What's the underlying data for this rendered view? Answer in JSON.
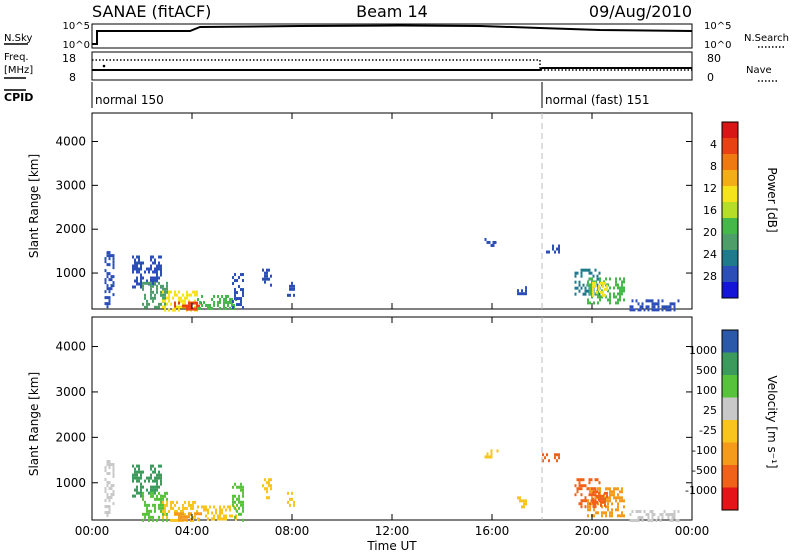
{
  "header": {
    "station": "SANAE (fitACF)",
    "beam": "Beam 14",
    "date": "09/Aug/2010"
  },
  "status_panel": {
    "nsky_label": "N.Sky",
    "nsearch_label": "N.Search",
    "freq_label_1": "Freq.",
    "freq_label_2": "[MHz]",
    "nave_label": "Nave",
    "cpid_label": "CPID",
    "nsky_ticks": [
      "10^5",
      "10^0"
    ],
    "nsearch_ticks": [
      "10^5",
      "10^0"
    ],
    "freq_ticks": [
      "18",
      "8"
    ],
    "nave_ticks": [
      "80",
      "0"
    ],
    "cpid_modes": [
      {
        "label": "normal 150",
        "start_hour": 0.0
      },
      {
        "label": "normal (fast) 151",
        "start_hour": 18.0
      }
    ]
  },
  "time_axis": {
    "label": "Time UT",
    "ticks": [
      {
        "hour": 0,
        "label": "00:00"
      },
      {
        "hour": 4,
        "label": "04:00"
      },
      {
        "hour": 8,
        "label": "08:00"
      },
      {
        "hour": 12,
        "label": "12:00"
      },
      {
        "hour": 16,
        "label": "16:00"
      },
      {
        "hour": 20,
        "label": "20:00"
      },
      {
        "hour": 24,
        "label": "00:00"
      }
    ],
    "range_hours": [
      0,
      24
    ]
  },
  "chart_data": [
    {
      "type": "heatmap",
      "title": "",
      "xlabel": "",
      "ylabel": "Slant Range [km]",
      "xlim_hours": [
        0,
        24
      ],
      "ylim_km": [
        180,
        4650
      ],
      "yticks": [
        1000,
        2000,
        3000,
        4000
      ],
      "colorbar_label": "Power [dB]",
      "colorbar_ticks": [
        "4",
        "8",
        "12",
        "16",
        "20",
        "24",
        "28"
      ],
      "colorscale": [
        "#1515d8",
        "#2c4fb7",
        "#1f7a8c",
        "#4e9e6a",
        "#46b84a",
        "#b6dd28",
        "#f5e31b",
        "#f2ad17",
        "#ef7a12",
        "#e84214",
        "#d81616"
      ],
      "mode_change_hour": 18.0,
      "echo_regions": [
        {
          "t_start": 0.5,
          "t_end": 0.9,
          "r_start": 180,
          "r_end": 1500,
          "level": 1
        },
        {
          "t_start": 1.6,
          "t_end": 2.8,
          "r_start": 700,
          "r_end": 1400,
          "level": 1
        },
        {
          "t_start": 2.0,
          "t_end": 3.0,
          "r_start": 200,
          "r_end": 800,
          "level": 3
        },
        {
          "t_start": 2.8,
          "t_end": 4.2,
          "r_start": 180,
          "r_end": 600,
          "level": 6
        },
        {
          "t_start": 3.2,
          "t_end": 4.4,
          "r_start": 180,
          "r_end": 350,
          "level": 9
        },
        {
          "t_start": 4.2,
          "t_end": 5.8,
          "r_start": 180,
          "r_end": 500,
          "level": 4
        },
        {
          "t_start": 5.6,
          "t_end": 6.0,
          "r_start": 180,
          "r_end": 1000,
          "level": 1
        },
        {
          "t_start": 6.8,
          "t_end": 7.2,
          "r_start": 700,
          "r_end": 1100,
          "level": 1
        },
        {
          "t_start": 7.8,
          "t_end": 8.1,
          "r_start": 500,
          "r_end": 800,
          "level": 1
        },
        {
          "t_start": 15.7,
          "t_end": 16.2,
          "r_start": 1600,
          "r_end": 1800,
          "level": 1
        },
        {
          "t_start": 17.0,
          "t_end": 17.4,
          "r_start": 450,
          "r_end": 700,
          "level": 1
        },
        {
          "t_start": 18.0,
          "t_end": 18.7,
          "r_start": 1500,
          "r_end": 1650,
          "level": 1
        },
        {
          "t_start": 19.3,
          "t_end": 20.3,
          "r_start": 500,
          "r_end": 1100,
          "level": 2
        },
        {
          "t_start": 19.8,
          "t_end": 21.3,
          "r_start": 300,
          "r_end": 900,
          "level": 4
        },
        {
          "t_start": 20.0,
          "t_end": 20.6,
          "r_start": 500,
          "r_end": 800,
          "level": 6
        },
        {
          "t_start": 21.5,
          "t_end": 23.5,
          "r_start": 180,
          "r_end": 400,
          "level": 1
        }
      ]
    },
    {
      "type": "heatmap",
      "title": "",
      "xlabel": "Time UT",
      "ylabel": "Slant Range [km]",
      "xlim_hours": [
        0,
        24
      ],
      "ylim_km": [
        180,
        4650
      ],
      "yticks": [
        1000,
        2000,
        3000,
        4000
      ],
      "colorbar_label": "Velocity [m s⁻¹]",
      "colorbar_ticks": [
        "1000",
        "500",
        "100",
        "25",
        "-25",
        "-100",
        "-500",
        "-1000"
      ],
      "colorscale": [
        "#e41418",
        "#f0621a",
        "#f49b1c",
        "#f7c51e",
        "#c8c8c8",
        "#58c23c",
        "#3d9a5d",
        "#2b58a8"
      ],
      "mode_change_hour": 18.0,
      "echo_regions": [
        {
          "t_start": 0.5,
          "t_end": 0.9,
          "r_start": 180,
          "r_end": 1500,
          "level": 4
        },
        {
          "t_start": 1.6,
          "t_end": 2.8,
          "r_start": 700,
          "r_end": 1400,
          "level": 6
        },
        {
          "t_start": 2.0,
          "t_end": 3.0,
          "r_start": 200,
          "r_end": 800,
          "level": 5
        },
        {
          "t_start": 2.8,
          "t_end": 4.2,
          "r_start": 180,
          "r_end": 600,
          "level": 3
        },
        {
          "t_start": 3.2,
          "t_end": 4.4,
          "r_start": 180,
          "r_end": 350,
          "level": 2
        },
        {
          "t_start": 4.2,
          "t_end": 5.8,
          "r_start": 180,
          "r_end": 500,
          "level": 3
        },
        {
          "t_start": 5.6,
          "t_end": 6.0,
          "r_start": 180,
          "r_end": 1000,
          "level": 5
        },
        {
          "t_start": 6.8,
          "t_end": 7.2,
          "r_start": 700,
          "r_end": 1100,
          "level": 3
        },
        {
          "t_start": 7.8,
          "t_end": 8.1,
          "r_start": 500,
          "r_end": 800,
          "level": 3
        },
        {
          "t_start": 15.7,
          "t_end": 16.2,
          "r_start": 1600,
          "r_end": 1800,
          "level": 3
        },
        {
          "t_start": 17.0,
          "t_end": 17.4,
          "r_start": 450,
          "r_end": 700,
          "level": 3
        },
        {
          "t_start": 18.0,
          "t_end": 18.7,
          "r_start": 1500,
          "r_end": 1650,
          "level": 1
        },
        {
          "t_start": 19.3,
          "t_end": 20.3,
          "r_start": 500,
          "r_end": 1100,
          "level": 1
        },
        {
          "t_start": 19.8,
          "t_end": 21.3,
          "r_start": 300,
          "r_end": 900,
          "level": 2
        },
        {
          "t_start": 20.0,
          "t_end": 20.6,
          "r_start": 500,
          "r_end": 800,
          "level": 1
        },
        {
          "t_start": 21.5,
          "t_end": 23.5,
          "r_start": 180,
          "r_end": 400,
          "level": 4
        }
      ]
    }
  ]
}
